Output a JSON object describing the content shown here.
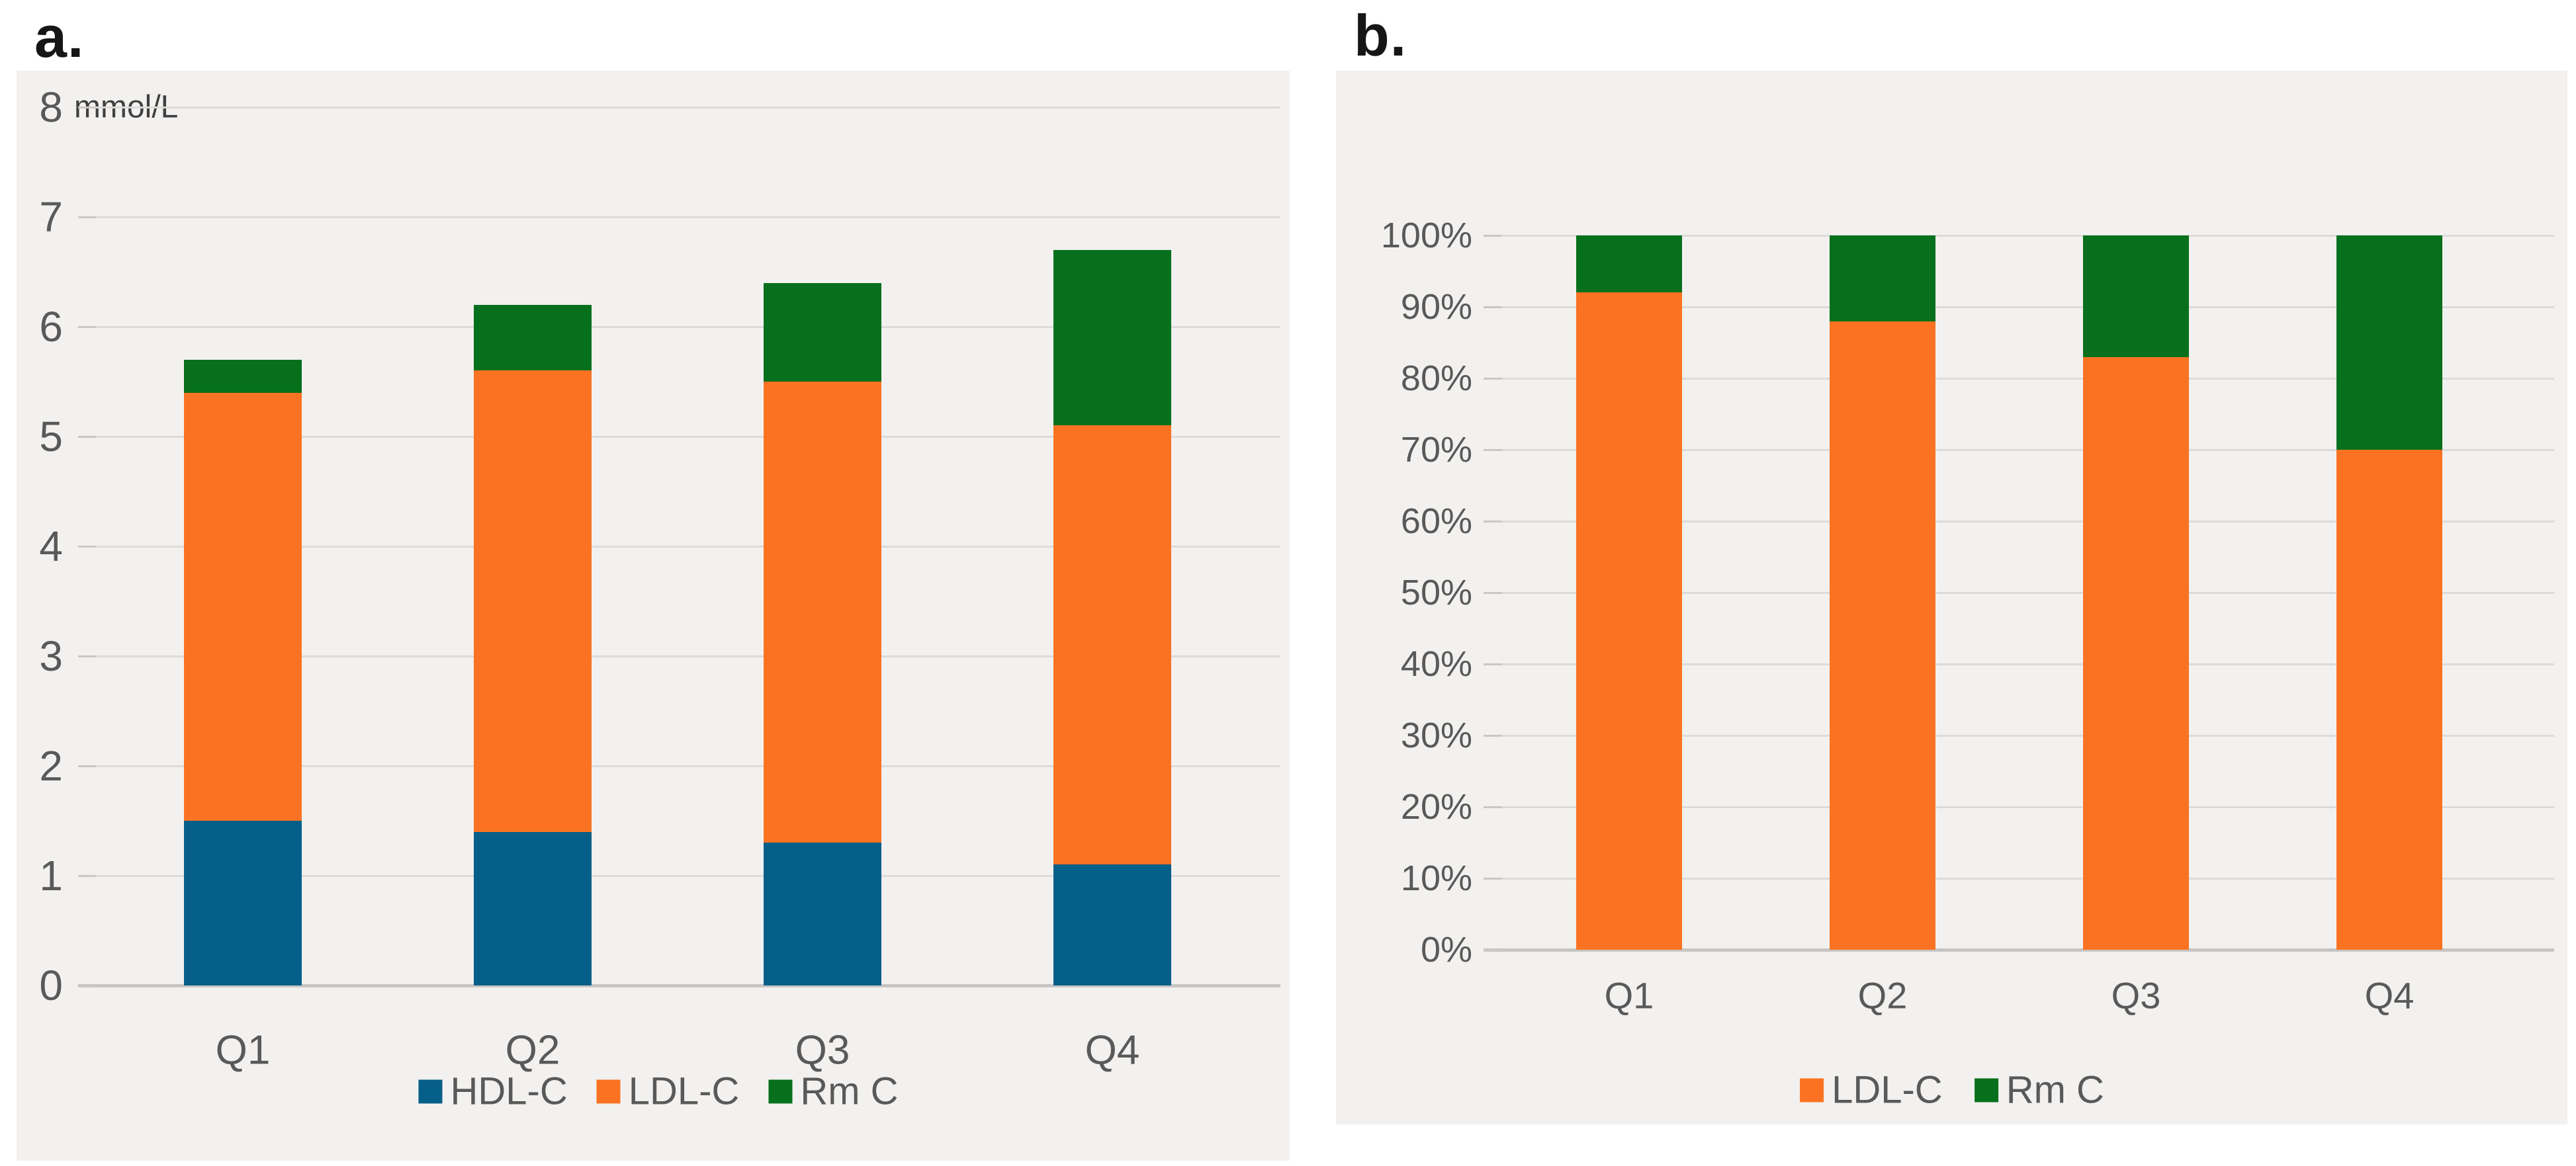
{
  "figure": {
    "panel_a_title": "a.",
    "panel_b_title": "b.",
    "unit_label": "mmol/L"
  },
  "colors": {
    "panel_bg": "#F2F1EF",
    "grid": "#DCDBD9",
    "axis": "#C7C6C4",
    "tick": "#C9C8C6",
    "label": "#595959",
    "title": "#161616",
    "hdl_blue": "#065F88",
    "ldl_orange": "#FB7322",
    "rm_green": "#06701C"
  },
  "chart_data": [
    {
      "type": "bar",
      "stacked": true,
      "title": "a.",
      "unit": "mmol/L",
      "categories": [
        "Q1",
        "Q2",
        "Q3",
        "Q4"
      ],
      "series": [
        {
          "name": "HDL-C",
          "color": "#065F88",
          "values": [
            1.5,
            1.4,
            1.3,
            1.1
          ]
        },
        {
          "name": "LDL-C",
          "color": "#FB7322",
          "values": [
            3.9,
            4.2,
            4.2,
            4.0
          ]
        },
        {
          "name": "Rm C",
          "color": "#06701C",
          "values": [
            0.3,
            0.6,
            0.9,
            1.6
          ]
        }
      ],
      "stack_totals": [
        5.7,
        6.2,
        6.4,
        6.7
      ],
      "ldl_stack_tops": [
        5.4,
        5.6,
        5.5,
        5.1
      ],
      "ylabel": "mmol/L",
      "ylim": [
        0,
        8
      ],
      "y_tick_step": 1,
      "y_tick_labels": [
        "0",
        "1",
        "2",
        "3",
        "4",
        "5",
        "6",
        "7",
        "8"
      ],
      "grid": true,
      "legend_position": "bottom"
    },
    {
      "type": "bar",
      "stacked": true,
      "percent": true,
      "title": "b.",
      "categories": [
        "Q1",
        "Q2",
        "Q3",
        "Q4"
      ],
      "series": [
        {
          "name": "LDL-C",
          "color": "#FB7322",
          "values": [
            92,
            88,
            83,
            70
          ]
        },
        {
          "name": "Rm C",
          "color": "#06701C",
          "values": [
            8,
            12,
            17,
            30
          ]
        }
      ],
      "ylim": [
        0,
        100
      ],
      "y_tick_step": 10,
      "y_tick_labels": [
        "0%",
        "10%",
        "20%",
        "30%",
        "40%",
        "50%",
        "60%",
        "70%",
        "80%",
        "90%",
        "100%"
      ],
      "grid": true,
      "legend_position": "bottom"
    }
  ]
}
